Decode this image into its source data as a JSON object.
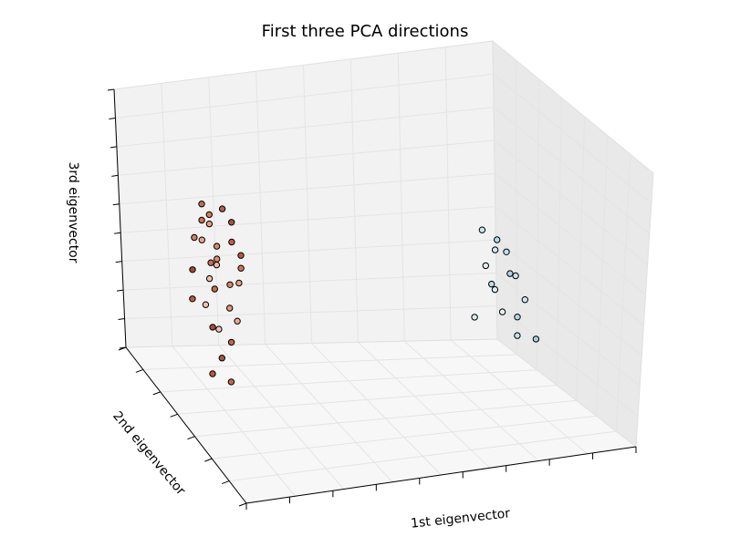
{
  "chart_data": {
    "type": "scatter",
    "projection": "3d",
    "title": "First three PCA directions",
    "xlabel": "1st eigenvector",
    "ylabel": "2nd eigenvector",
    "zlabel": "3rd eigenvector",
    "tick_labels_visible": false,
    "grid": true,
    "colormap": "coolwarm (light blue to dark red)",
    "point_edge_color": "#000000",
    "clusters": [
      {
        "description": "left orange-red cluster",
        "points": [
          {
            "x": -2.8,
            "y": 0.4,
            "z": 1.2,
            "color": "#c06e4e"
          },
          {
            "x": -2.6,
            "y": 0.2,
            "z": 1.0,
            "color": "#d97a55"
          },
          {
            "x": -2.4,
            "y": 0.3,
            "z": 1.1,
            "color": "#b8604a"
          },
          {
            "x": -2.7,
            "y": 0.1,
            "z": 0.9,
            "color": "#cf7152"
          },
          {
            "x": -2.5,
            "y": -0.1,
            "z": 0.8,
            "color": "#e69c80"
          },
          {
            "x": -2.3,
            "y": 0.5,
            "z": 0.95,
            "color": "#a84f3d"
          },
          {
            "x": -2.9,
            "y": 0.3,
            "z": 0.7,
            "color": "#d28060"
          },
          {
            "x": -2.2,
            "y": 0.2,
            "z": 0.6,
            "color": "#c45e42"
          },
          {
            "x": -2.6,
            "y": -0.2,
            "z": 0.55,
            "color": "#e8a78f"
          },
          {
            "x": -2.4,
            "y": 0.0,
            "z": 0.5,
            "color": "#dc8a6a"
          },
          {
            "x": -2.1,
            "y": 0.4,
            "z": 0.45,
            "color": "#b35842"
          },
          {
            "x": -2.7,
            "y": 0.6,
            "z": 0.4,
            "color": "#c96d4f"
          },
          {
            "x": -2.5,
            "y": 0.3,
            "z": 0.3,
            "color": "#f0b49b"
          },
          {
            "x": -2.3,
            "y": -0.3,
            "z": 0.25,
            "color": "#e28d6d"
          },
          {
            "x": -2.0,
            "y": 0.1,
            "z": 0.2,
            "color": "#d47353"
          },
          {
            "x": -2.8,
            "y": -0.1,
            "z": 0.15,
            "color": "#a14a37"
          },
          {
            "x": -2.2,
            "y": 0.6,
            "z": 0.1,
            "color": "#e9a284"
          },
          {
            "x": -2.6,
            "y": 0.5,
            "z": 0.0,
            "color": "#cc6a4c"
          },
          {
            "x": -2.4,
            "y": -0.4,
            "z": -0.05,
            "color": "#f2bca4"
          },
          {
            "x": -2.1,
            "y": -0.2,
            "z": -0.1,
            "color": "#de8464"
          },
          {
            "x": -2.9,
            "y": 0.2,
            "z": -0.2,
            "color": "#b95c44"
          },
          {
            "x": -2.3,
            "y": 0.4,
            "z": -0.3,
            "color": "#e39878"
          },
          {
            "x": -2.5,
            "y": -0.3,
            "z": -0.4,
            "color": "#f1c0aa"
          },
          {
            "x": -2.7,
            "y": 0.7,
            "z": -0.5,
            "color": "#a64d3a"
          },
          {
            "x": -2.0,
            "y": -0.1,
            "z": -0.6,
            "color": "#eda88c"
          },
          {
            "x": -2.4,
            "y": 0.8,
            "z": -0.7,
            "color": "#c26648"
          },
          {
            "x": -2.2,
            "y": -0.5,
            "z": -0.8,
            "color": "#f3c6b2"
          },
          {
            "x": -2.6,
            "y": 0.9,
            "z": -0.9,
            "color": "#ad533e"
          },
          {
            "x": -2.8,
            "y": 1.0,
            "z": -1.1,
            "color": "#b75a43"
          },
          {
            "x": -2.5,
            "y": 1.1,
            "z": -1.2,
            "color": "#c8694b"
          }
        ]
      },
      {
        "description": "right light-blue cluster",
        "points": [
          {
            "x": 2.4,
            "y": -0.2,
            "z": 0.6,
            "color": "#cde5ef"
          },
          {
            "x": 2.6,
            "y": 0.0,
            "z": 0.5,
            "color": "#b8dbe8"
          },
          {
            "x": 2.5,
            "y": 0.2,
            "z": 0.4,
            "color": "#d7eaf2"
          },
          {
            "x": 2.8,
            "y": -0.1,
            "z": 0.3,
            "color": "#c1dfeb"
          },
          {
            "x": 2.3,
            "y": 0.3,
            "z": 0.2,
            "color": "#e0eff5"
          },
          {
            "x": 2.7,
            "y": 0.4,
            "z": 0.1,
            "color": "#aed4e4"
          },
          {
            "x": 2.9,
            "y": 0.1,
            "z": 0.0,
            "color": "#c9e3ee"
          },
          {
            "x": 2.4,
            "y": 0.5,
            "z": -0.1,
            "color": "#dbecf3"
          },
          {
            "x": 2.6,
            "y": -0.3,
            "z": -0.2,
            "color": "#bddde9"
          },
          {
            "x": 3.0,
            "y": 0.3,
            "z": -0.3,
            "color": "#d2e7f0"
          },
          {
            "x": 2.5,
            "y": 0.6,
            "z": -0.4,
            "color": "#e6f1f6"
          },
          {
            "x": 2.8,
            "y": 0.5,
            "z": -0.5,
            "color": "#b4d8e6"
          },
          {
            "x": 2.2,
            "y": 0.0,
            "z": -0.6,
            "color": "#d9ebf2"
          },
          {
            "x": 2.7,
            "y": 0.8,
            "z": -0.7,
            "color": "#c5e1ec"
          },
          {
            "x": 3.1,
            "y": 0.6,
            "z": -0.8,
            "color": "#a9d1e2"
          }
        ]
      }
    ]
  }
}
